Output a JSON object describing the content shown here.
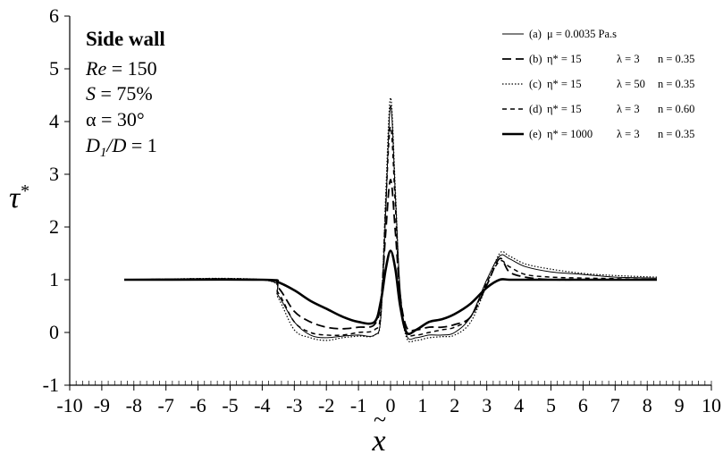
{
  "chart_data": {
    "type": "line",
    "xlabel": "x̃",
    "ylabel": "τ*",
    "xlim": [
      -10,
      10
    ],
    "ylim": [
      -1,
      6
    ],
    "x_ticks": [
      -10,
      -9,
      -8,
      -7,
      -6,
      -5,
      -4,
      -3,
      -2,
      -1,
      0,
      1,
      2,
      3,
      4,
      5,
      6,
      7,
      8,
      9,
      10
    ],
    "y_ticks": [
      -1,
      0,
      1,
      2,
      3,
      4,
      5,
      6
    ],
    "grid": false,
    "legend_position": "top-right",
    "annotation": {
      "title": "Side wall",
      "lines": [
        {
          "var": "Re",
          "rest": " = 150"
        },
        {
          "var": "S",
          "rest": " = 75%"
        },
        {
          "var": "",
          "rest": "α = 30°"
        },
        {
          "var": "D",
          "sub": "1",
          "var2": "/D",
          "rest": " = 1"
        }
      ]
    },
    "series": [
      {
        "name": "(a)  μ = 0.0035 Pa.s",
        "style": "thin",
        "x": [
          -8.3,
          -4.0,
          -3.5,
          -3.0,
          -2.5,
          -2.0,
          -1.5,
          -1.0,
          -0.5,
          -0.3,
          -0.15,
          0.0,
          0.15,
          0.3,
          0.5,
          0.8,
          1.2,
          1.6,
          2.0,
          2.5,
          3.0,
          3.4,
          3.7,
          4.2,
          5.0,
          6.0,
          7.0,
          8.3
        ],
        "y": [
          1.0,
          1.0,
          0.7,
          0.2,
          -0.05,
          -0.1,
          -0.07,
          -0.05,
          -0.05,
          0.3,
          2.3,
          4.3,
          2.6,
          0.8,
          -0.05,
          -0.1,
          -0.05,
          -0.05,
          0.0,
          0.3,
          1.0,
          1.45,
          1.4,
          1.25,
          1.15,
          1.1,
          1.05,
          1.03
        ]
      },
      {
        "name": "(b)  η* = 15   λ = 3   n = 0.35",
        "style": "long-dash",
        "x": [
          -8.3,
          -4.0,
          -3.5,
          -3.0,
          -2.5,
          -2.0,
          -1.5,
          -1.0,
          -0.5,
          -0.3,
          -0.15,
          0.0,
          0.15,
          0.3,
          0.5,
          0.8,
          1.2,
          1.6,
          2.0,
          2.5,
          3.0,
          3.4,
          3.7,
          4.2,
          5.0,
          6.0,
          7.0,
          8.3
        ],
        "y": [
          1.0,
          1.0,
          0.85,
          0.4,
          0.2,
          0.1,
          0.07,
          0.1,
          0.15,
          0.6,
          1.9,
          2.9,
          1.9,
          0.7,
          0.1,
          0.05,
          0.1,
          0.1,
          0.15,
          0.3,
          0.9,
          1.4,
          1.15,
          1.05,
          1.0,
          1.0,
          1.0,
          1.0
        ]
      },
      {
        "name": "(c)  η* = 15   λ = 50   n = 0.35",
        "style": "dotted",
        "x": [
          -8.3,
          -4.0,
          -3.5,
          -3.0,
          -2.5,
          -2.0,
          -1.5,
          -1.0,
          -0.5,
          -0.3,
          -0.15,
          0.0,
          0.15,
          0.3,
          0.5,
          0.8,
          1.2,
          1.6,
          2.0,
          2.5,
          3.0,
          3.4,
          3.7,
          4.2,
          5.0,
          6.0,
          7.0,
          8.3
        ],
        "y": [
          1.0,
          1.0,
          0.65,
          0.05,
          -0.1,
          -0.15,
          -0.1,
          -0.07,
          -0.05,
          0.3,
          2.6,
          4.45,
          2.7,
          0.7,
          -0.1,
          -0.15,
          -0.1,
          -0.08,
          -0.05,
          0.2,
          0.9,
          1.5,
          1.45,
          1.3,
          1.2,
          1.12,
          1.08,
          1.05
        ]
      },
      {
        "name": "(d)  η* = 15   λ = 3   n = 0.60",
        "style": "short-dash",
        "x": [
          -8.3,
          -4.0,
          -3.5,
          -3.0,
          -2.5,
          -2.0,
          -1.5,
          -1.0,
          -0.5,
          -0.3,
          -0.15,
          0.0,
          0.15,
          0.3,
          0.5,
          0.8,
          1.2,
          1.6,
          2.0,
          2.5,
          3.0,
          3.4,
          3.7,
          4.2,
          5.0,
          6.0,
          7.0,
          8.3
        ],
        "y": [
          1.0,
          1.0,
          0.75,
          0.2,
          0.0,
          -0.05,
          -0.05,
          0.0,
          0.05,
          0.4,
          2.4,
          3.9,
          2.4,
          0.6,
          0.0,
          -0.05,
          0.0,
          0.05,
          0.1,
          0.3,
          0.95,
          1.35,
          1.25,
          1.1,
          1.05,
          1.03,
          1.02,
          1.0
        ]
      },
      {
        "name": "(e)  η* = 1000   λ = 3   n = 0.35",
        "style": "thick",
        "x": [
          -8.3,
          -4.0,
          -3.5,
          -3.0,
          -2.5,
          -2.0,
          -1.5,
          -1.0,
          -0.5,
          -0.3,
          -0.15,
          0.0,
          0.15,
          0.3,
          0.5,
          0.8,
          1.2,
          1.6,
          2.0,
          2.5,
          3.0,
          3.4,
          3.7,
          4.2,
          5.0,
          6.0,
          7.0,
          8.3
        ],
        "y": [
          1.0,
          1.0,
          0.95,
          0.8,
          0.6,
          0.45,
          0.3,
          0.2,
          0.2,
          0.6,
          1.2,
          1.55,
          1.2,
          0.5,
          0.0,
          0.05,
          0.2,
          0.25,
          0.35,
          0.55,
          0.85,
          1.0,
          1.0,
          1.0,
          1.0,
          1.0,
          1.0,
          1.0
        ]
      }
    ],
    "legend_labels": [
      {
        "letter": "(a)",
        "parts": [
          "μ = 0.0035 Pa.s"
        ]
      },
      {
        "letter": "(b)",
        "parts": [
          "η* = 15",
          "λ = 3",
          "n = 0.35"
        ]
      },
      {
        "letter": "(c)",
        "parts": [
          "η* = 15",
          "λ = 50",
          "n = 0.35"
        ]
      },
      {
        "letter": "(d)",
        "parts": [
          "η* = 15",
          "λ = 3",
          "n = 0.60"
        ]
      },
      {
        "letter": "(e)",
        "parts": [
          "η* = 1000",
          "λ = 3",
          "n = 0.35"
        ]
      }
    ]
  }
}
